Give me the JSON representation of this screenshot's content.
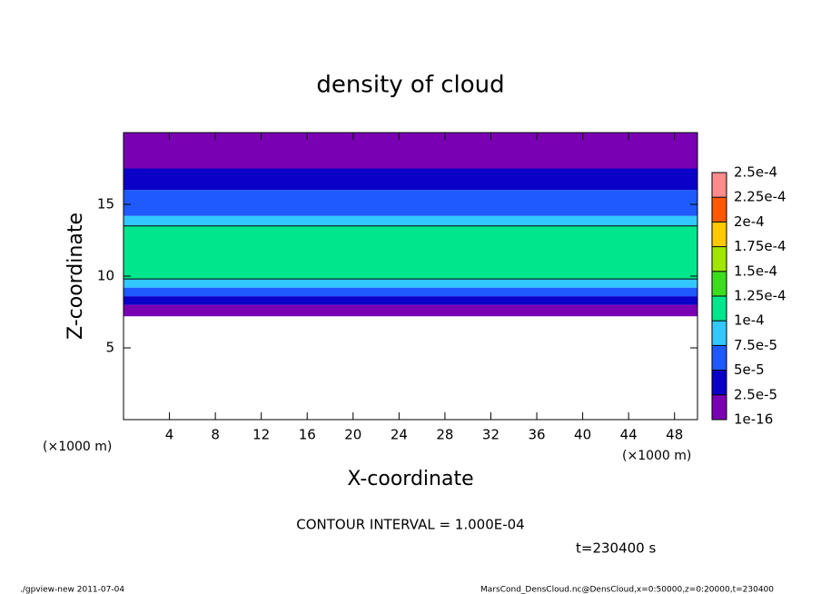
{
  "chart_data": {
    "type": "contour",
    "title": "density of cloud",
    "xlabel": "X-coordinate",
    "ylabel": "Z-coordinate",
    "x_unit": "(×1000 m)",
    "xlim": [
      0,
      50
    ],
    "ylim": [
      0,
      20
    ],
    "xticks": [
      4,
      8,
      12,
      16,
      20,
      24,
      28,
      32,
      36,
      40,
      44,
      48
    ],
    "yticks": [
      5,
      10,
      15
    ],
    "colorbar": {
      "levels": [
        1e-16,
        {
          "value": 2.5e-05,
          "label": "2.5e-5"
        },
        {
          "value": 5e-05,
          "label": "5e-5"
        },
        {
          "value": 7.5e-05,
          "label": "7.5e-5"
        },
        {
          "value": 0.0001,
          "label": "1e-4"
        },
        {
          "value": 0.000125,
          "label": "1.25e-4"
        },
        {
          "value": 0.00015,
          "label": "1.5e-4"
        },
        {
          "value": 0.000175,
          "label": "1.75e-4"
        },
        {
          "value": 0.0002,
          "label": "2e-4"
        },
        {
          "value": 0.000225,
          "label": "2.25e-4"
        },
        {
          "value": 0.00025,
          "label": "2.5e-4"
        }
      ],
      "colors": [
        "#7a00b4",
        "#0a00c8",
        "#1e5aff",
        "#32c8ff",
        "#00e68c",
        "#3cdc1e",
        "#a0e600",
        "#ffc800",
        "#ff5a00",
        "#ff8c8c"
      ]
    },
    "profile": {
      "z_edges": [
        7.2,
        8,
        8.6,
        9.2,
        9.8,
        13.5,
        14.2,
        16,
        17.5,
        20
      ],
      "values": [
        1e-05,
        3.5e-05,
        6e-05,
        8.5e-05,
        0.00011,
        8.5e-05,
        6e-05,
        3.5e-05,
        1e-05
      ]
    },
    "contour_levels": [
      0.0001
    ],
    "annotation": "CONTOUR INTERVAL = 1.000E-04",
    "time_label": "t=230400 s",
    "footer_left": "./gpview-new  2011-07-04",
    "footer_right": "MarsCond_DensCloud.nc@DensCloud,x=0:50000,z=0:20000,t=230400"
  }
}
